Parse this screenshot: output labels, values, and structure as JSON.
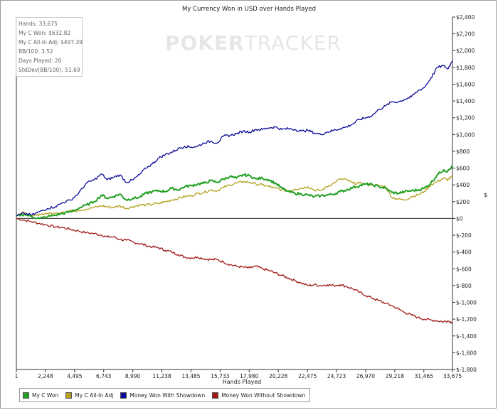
{
  "chart_data": {
    "type": "line",
    "title": "My Currency Won in USD over Hands Played",
    "xlabel": "Hands Played",
    "ylabel": "$",
    "xlim": [
      1,
      33675
    ],
    "ylim": [
      -1800,
      2400
    ],
    "x_ticks": [
      "1",
      "2,248",
      "4,495",
      "6,743",
      "8,990",
      "11,238",
      "13,485",
      "15,733",
      "17,980",
      "20,228",
      "22,475",
      "24,723",
      "26,970",
      "29,218",
      "31,465",
      "33,675"
    ],
    "x_tick_values": [
      1,
      2248,
      4495,
      6743,
      8990,
      11238,
      13485,
      15733,
      17980,
      20228,
      22475,
      24723,
      26970,
      29218,
      31465,
      33675
    ],
    "y_ticks": [
      "$2,400",
      "$2,200",
      "$2,000",
      "$1,800",
      "$1,600",
      "$1,400",
      "$1,200",
      "$1,000",
      "$800",
      "$600",
      "$400",
      "$200",
      "$0",
      "$-200",
      "$-400",
      "$-600",
      "$-800",
      "$-1,000",
      "$-1,200",
      "$-1,400",
      "$-1,600",
      "$-1,800"
    ],
    "y_tick_values": [
      2400,
      2200,
      2000,
      1800,
      1600,
      1400,
      1200,
      1000,
      800,
      600,
      400,
      200,
      0,
      -200,
      -400,
      -600,
      -800,
      -1000,
      -1200,
      -1400,
      -1600,
      -1800
    ],
    "grid": false,
    "legend_position": "bottom-left",
    "series": [
      {
        "name": "Money Won With Showdown",
        "color": "#0a0a96",
        "x": [
          1,
          600,
          1200,
          1800,
          2400,
          3000,
          3600,
          4200,
          4800,
          5400,
          6000,
          6600,
          7000,
          7500,
          8000,
          8500,
          9000,
          9500,
          10000,
          10500,
          11000,
          11500,
          12000,
          12500,
          13000,
          13500,
          14000,
          14500,
          15000,
          15500,
          16000,
          16500,
          17000,
          17500,
          18000,
          18500,
          19000,
          19500,
          20000,
          20500,
          21000,
          21500,
          22000,
          22500,
          23000,
          23500,
          24000,
          24500,
          25000,
          25500,
          26000,
          26500,
          27000,
          27500,
          28000,
          28500,
          29000,
          29500,
          30000,
          30500,
          31000,
          31500,
          32000,
          32500,
          33000,
          33300,
          33675
        ],
        "y": [
          30,
          60,
          40,
          80,
          120,
          140,
          190,
          220,
          300,
          420,
          460,
          530,
          460,
          490,
          520,
          430,
          460,
          520,
          600,
          650,
          720,
          760,
          790,
          830,
          860,
          850,
          860,
          900,
          920,
          900,
          980,
          990,
          1010,
          1040,
          1030,
          1060,
          1060,
          1080,
          1090,
          1060,
          1070,
          1060,
          1040,
          1050,
          1020,
          1000,
          1030,
          1050,
          1070,
          1090,
          1130,
          1180,
          1200,
          1230,
          1300,
          1340,
          1390,
          1390,
          1420,
          1450,
          1520,
          1560,
          1670,
          1800,
          1820,
          1780,
          1880
        ]
      },
      {
        "name": "My C Won",
        "color": "#22a022",
        "x": [
          1,
          600,
          1200,
          1800,
          2400,
          3000,
          3600,
          4200,
          4800,
          5400,
          6000,
          6600,
          7000,
          7500,
          8000,
          8500,
          9000,
          9500,
          10000,
          10500,
          11000,
          11500,
          12000,
          12500,
          13000,
          13500,
          14000,
          14500,
          15000,
          15500,
          16000,
          16500,
          17000,
          17500,
          18000,
          18500,
          19000,
          19500,
          20000,
          20500,
          21000,
          21500,
          22000,
          22500,
          23000,
          23500,
          24000,
          24500,
          25000,
          25500,
          26000,
          26500,
          27000,
          27500,
          28000,
          28500,
          29000,
          29500,
          30000,
          30500,
          31000,
          31500,
          32000,
          32500,
          33000,
          33300,
          33675
        ],
        "y": [
          30,
          50,
          20,
          0,
          20,
          40,
          60,
          80,
          120,
          160,
          200,
          280,
          240,
          260,
          290,
          220,
          240,
          250,
          300,
          320,
          330,
          320,
          360,
          340,
          380,
          390,
          410,
          420,
          450,
          430,
          470,
          500,
          480,
          520,
          510,
          470,
          480,
          460,
          420,
          360,
          320,
          300,
          290,
          280,
          260,
          270,
          280,
          290,
          320,
          340,
          370,
          390,
          410,
          400,
          380,
          360,
          310,
          300,
          320,
          330,
          340,
          360,
          420,
          520,
          580,
          560,
          620
        ]
      },
      {
        "name": "My C All-In Adj",
        "color": "#b4a01e",
        "x": [
          1,
          600,
          1200,
          1800,
          2400,
          3000,
          3600,
          4200,
          4800,
          5400,
          6000,
          6600,
          7000,
          7500,
          8000,
          8500,
          9000,
          9500,
          10000,
          10500,
          11000,
          11500,
          12000,
          12500,
          13000,
          13500,
          14000,
          14500,
          15000,
          15500,
          16000,
          16500,
          17000,
          17500,
          18000,
          18500,
          19000,
          19500,
          20000,
          20500,
          21000,
          21500,
          22000,
          22500,
          23000,
          23500,
          24000,
          24500,
          25000,
          25500,
          26000,
          26500,
          27000,
          27500,
          28000,
          28500,
          29000,
          29500,
          30000,
          30500,
          31000,
          31500,
          32000,
          32500,
          33000,
          33300,
          33675
        ],
        "y": [
          40,
          70,
          20,
          50,
          60,
          60,
          80,
          90,
          100,
          110,
          130,
          150,
          140,
          130,
          150,
          120,
          140,
          160,
          160,
          170,
          180,
          200,
          220,
          240,
          260,
          270,
          300,
          310,
          340,
          330,
          370,
          400,
          420,
          440,
          430,
          410,
          400,
          380,
          360,
          340,
          330,
          350,
          360,
          380,
          340,
          330,
          380,
          420,
          470,
          460,
          420,
          420,
          410,
          400,
          390,
          380,
          250,
          230,
          220,
          260,
          280,
          320,
          400,
          440,
          480,
          460,
          500
        ]
      },
      {
        "name": "Money Won Without Showdown",
        "color": "#a01818",
        "x": [
          1,
          600,
          1200,
          1800,
          2400,
          3000,
          3600,
          4200,
          4800,
          5400,
          6000,
          6600,
          7000,
          7500,
          8000,
          8500,
          9000,
          9500,
          10000,
          10500,
          11000,
          11500,
          12000,
          12500,
          13000,
          13500,
          14000,
          14500,
          15000,
          15500,
          16000,
          16500,
          17000,
          17500,
          18000,
          18500,
          19000,
          19500,
          20000,
          20500,
          21000,
          21500,
          22000,
          22500,
          23000,
          23500,
          24000,
          24500,
          25000,
          25500,
          26000,
          26500,
          27000,
          27500,
          28000,
          28500,
          29000,
          29500,
          30000,
          30500,
          31000,
          31500,
          32000,
          32500,
          33000,
          33300,
          33675
        ],
        "y": [
          0,
          -20,
          -40,
          -60,
          -80,
          -100,
          -110,
          -130,
          -150,
          -170,
          -180,
          -200,
          -220,
          -220,
          -250,
          -260,
          -280,
          -300,
          -320,
          -340,
          -350,
          -380,
          -400,
          -430,
          -460,
          -470,
          -460,
          -480,
          -490,
          -490,
          -520,
          -550,
          -570,
          -580,
          -590,
          -570,
          -600,
          -620,
          -650,
          -680,
          -710,
          -740,
          -770,
          -800,
          -790,
          -800,
          -790,
          -800,
          -790,
          -810,
          -840,
          -880,
          -920,
          -950,
          -980,
          -1010,
          -1040,
          -1080,
          -1120,
          -1150,
          -1180,
          -1200,
          -1210,
          -1220,
          -1230,
          -1220,
          -1240
        ]
      }
    ]
  },
  "stats": [
    "Hands: 33,675",
    "My C Won: $632.82",
    "My C All-In Adj: $497.39",
    "BB/100: 3.52",
    "Days Played: 20",
    "StdDev(BB/100): 51.69"
  ],
  "watermark": {
    "bold": "POKER",
    "thin": "TRACKER"
  },
  "legend": [
    {
      "label": "My C Won",
      "color": "#22a022"
    },
    {
      "label": "My C All-In Adj",
      "color": "#b4a01e"
    },
    {
      "label": "Money Won With Showdown",
      "color": "#0a0a96"
    },
    {
      "label": "Money Won Without Showdown",
      "color": "#a01818"
    }
  ]
}
